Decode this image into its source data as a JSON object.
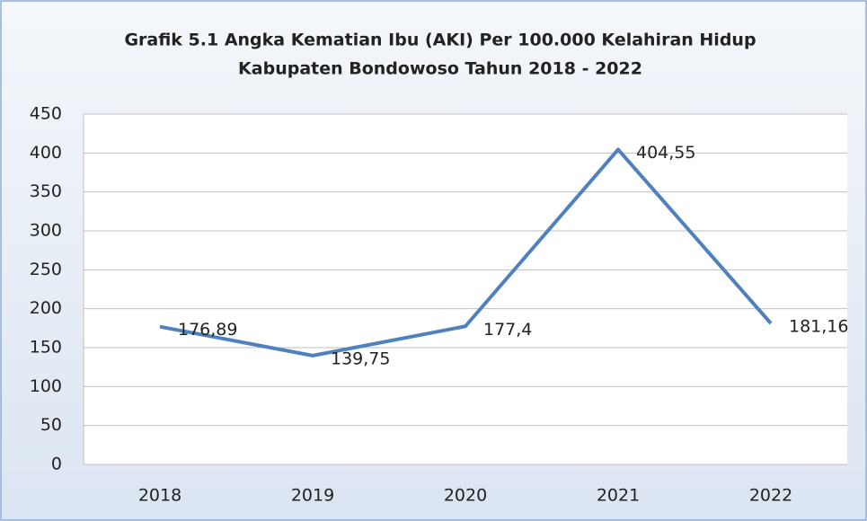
{
  "chart_data": {
    "type": "line",
    "title": [
      "Grafik 5.1 Angka Kematian Ibu (AKI) Per 100.000 Kelahiran Hidup",
      "Kabupaten Bondowoso Tahun 2018 - 2022"
    ],
    "categories": [
      "2018",
      "2019",
      "2020",
      "2021",
      "2022"
    ],
    "values": [
      176.89,
      139.75,
      177.4,
      404.55,
      181.16
    ],
    "value_labels": [
      "176,89",
      "139,75",
      "177,4",
      "404,55",
      "181,16"
    ],
    "color": "#4f81bd",
    "ylim": [
      0,
      450
    ],
    "yticks": [
      0,
      50,
      100,
      150,
      200,
      250,
      300,
      350,
      400,
      450
    ],
    "grid": true
  }
}
